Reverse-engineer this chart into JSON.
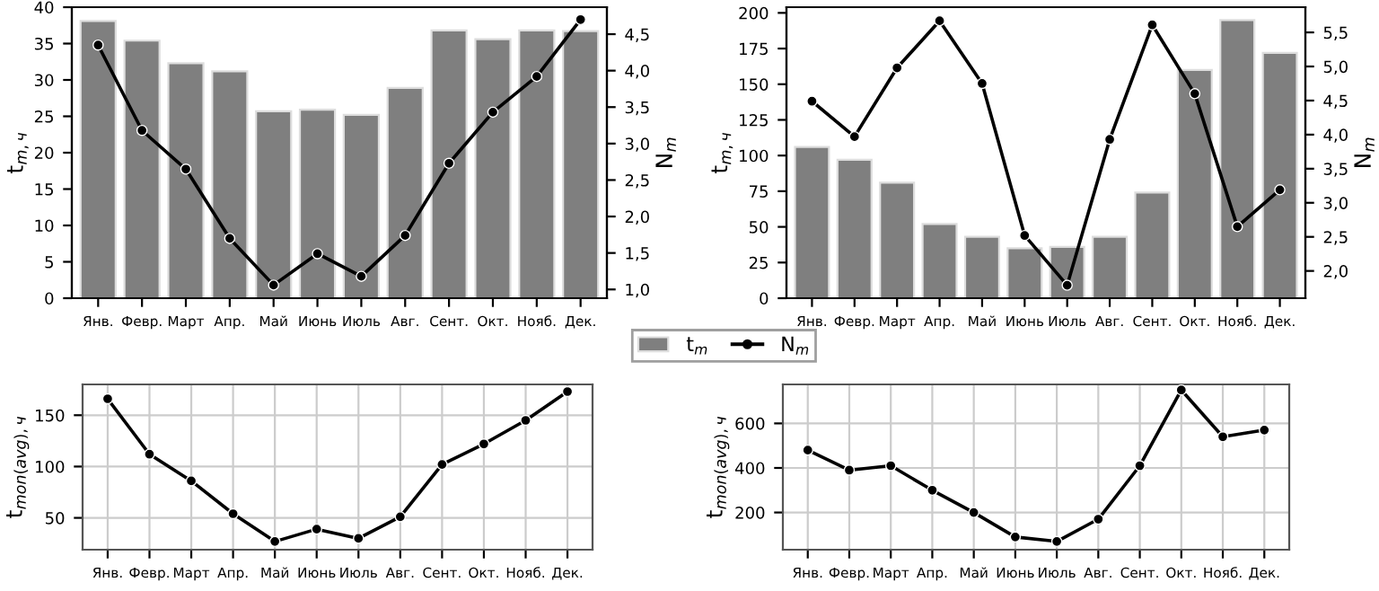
{
  "chart_data": [
    {
      "type": "bar",
      "categories": [
        "Янв.",
        "Февр.",
        "Март",
        "Апр.",
        "Май",
        "Июнь",
        "Июль",
        "Авг.",
        "Сент.",
        "Окт.",
        "Нояб.",
        "Дек."
      ],
      "ylabel": "t$_{m,ч}$",
      "y2label": "N$_{m}$",
      "ylim": [
        0,
        40
      ],
      "yticks": [
        0,
        5,
        10,
        15,
        20,
        25,
        30,
        35,
        40
      ],
      "y2lim": [
        0.88,
        4.87
      ],
      "y2ticks": [
        {
          "value": 1.0,
          "label": "1,0"
        },
        {
          "value": 1.5,
          "label": "1,5"
        },
        {
          "value": 2.0,
          "label": "2,0"
        },
        {
          "value": 2.5,
          "label": "2,5"
        },
        {
          "value": 3.0,
          "label": "3,0"
        },
        {
          "value": 3.5,
          "label": "3,5"
        },
        {
          "value": 4.0,
          "label": "4,0"
        },
        {
          "value": 4.5,
          "label": "4,5"
        }
      ],
      "legend": "bottom",
      "grid": false,
      "series": [
        {
          "name": "t$_{m}$",
          "type": "bar",
          "color": "#7f7f7f",
          "values": [
            38.1,
            35.4,
            32.3,
            31.2,
            25.7,
            25.9,
            25.2,
            28.9,
            36.8,
            35.6,
            36.8,
            36.7
          ]
        },
        {
          "name": "N$_{m}$",
          "type": "line",
          "axis": "y2",
          "color": "#000000",
          "marker": "circle",
          "line_style": "solid",
          "values": [
            4.35,
            3.18,
            2.65,
            1.7,
            1.06,
            1.49,
            1.18,
            1.74,
            2.73,
            3.43,
            3.92,
            4.7
          ]
        }
      ]
    },
    {
      "type": "bar",
      "categories": [
        "Янв.",
        "Февр.",
        "Март",
        "Апр.",
        "Май",
        "Июнь",
        "Июль",
        "Авг.",
        "Сент.",
        "Окт.",
        "Нояб.",
        "Дек."
      ],
      "ylabel": "t$_{m,ч}$",
      "y2label": "N$_{m}$",
      "ylim": [
        0,
        204
      ],
      "yticks": [
        0,
        25,
        50,
        75,
        100,
        125,
        150,
        175,
        200
      ],
      "y2lim": [
        1.6,
        5.87
      ],
      "y2ticks": [
        {
          "value": 2.0,
          "label": "2,0"
        },
        {
          "value": 2.5,
          "label": "2,5"
        },
        {
          "value": 3.0,
          "label": "3,0"
        },
        {
          "value": 3.5,
          "label": "3,5"
        },
        {
          "value": 4.0,
          "label": "4,0"
        },
        {
          "value": 4.5,
          "label": "4,5"
        },
        {
          "value": 5.0,
          "label": "5,0"
        },
        {
          "value": 5.5,
          "label": "5,5"
        }
      ],
      "grid": false,
      "series": [
        {
          "type": "bar",
          "color": "#7f7f7f",
          "values": [
            106,
            97,
            81,
            52,
            43,
            35,
            36,
            43,
            74,
            160,
            195,
            172
          ]
        },
        {
          "type": "line",
          "axis": "y2",
          "color": "#000000",
          "marker": "circle",
          "line_style": "solid",
          "values": [
            4.49,
            3.97,
            4.98,
            5.67,
            4.75,
            2.52,
            1.79,
            3.93,
            5.61,
            4.6,
            2.65,
            3.19
          ]
        }
      ]
    },
    {
      "type": "line",
      "categories": [
        "Янв.",
        "Февр.",
        "Март",
        "Апр.",
        "Май",
        "Июнь",
        "Июль",
        "Авг.",
        "Сент.",
        "Окт.",
        "Нояб.",
        "Дек."
      ],
      "ylabel": "t$_{mon(avg),ч}$",
      "ylim": [
        19,
        180
      ],
      "yticks": [
        50,
        100,
        150
      ],
      "grid": true,
      "marker": "circle",
      "line_style": "solid",
      "series": [
        {
          "color": "#000000",
          "values": [
            166,
            112,
            86,
            54,
            27,
            39,
            30,
            51,
            102,
            122,
            145,
            173
          ]
        }
      ]
    },
    {
      "type": "line",
      "categories": [
        "Янв.",
        "Февр.",
        "Март",
        "Апр.",
        "Май",
        "Июнь",
        "Июль",
        "Авг.",
        "Сент.",
        "Окт.",
        "Нояб.",
        "Дек."
      ],
      "ylabel": "t$_{mon(avg),ч}$",
      "ylim": [
        33,
        775
      ],
      "yticks": [
        200,
        400,
        600
      ],
      "grid": true,
      "marker": "circle",
      "line_style": "solid",
      "series": [
        {
          "color": "#000000",
          "values": [
            480,
            390,
            410,
            300,
            200,
            90,
            70,
            170,
            410,
            750,
            540,
            570
          ]
        }
      ]
    }
  ]
}
